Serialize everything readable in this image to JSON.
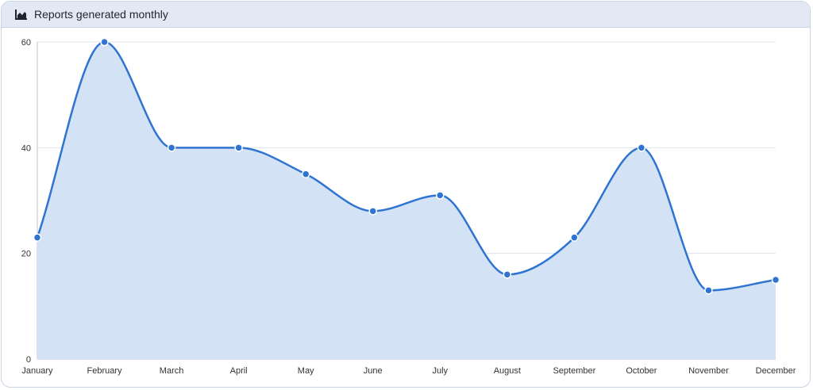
{
  "header": {
    "title": "Reports generated monthly",
    "icon": "area-chart-icon"
  },
  "colors": {
    "line": "#2f74d0",
    "fill": "#d4e2f5",
    "grid": "#dde3ec",
    "axis": "#b8c3d4",
    "header_bg": "#e3e9f4"
  },
  "chart_data": {
    "type": "area",
    "title": "Reports generated monthly",
    "categories": [
      "January",
      "February",
      "March",
      "April",
      "May",
      "June",
      "July",
      "August",
      "September",
      "October",
      "November",
      "December"
    ],
    "values": [
      23,
      60,
      40,
      40,
      35,
      28,
      31,
      16,
      23,
      40,
      13,
      15
    ],
    "ylim": [
      0,
      60
    ],
    "yticks": [
      0,
      20,
      40,
      60
    ],
    "grid": true,
    "smooth": true,
    "legend": "none"
  }
}
